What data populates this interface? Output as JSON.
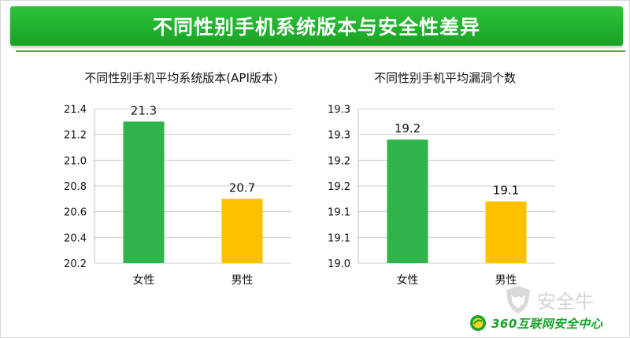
{
  "header": {
    "title": "不同性别手机系统版本与安全性差异"
  },
  "chart_data": [
    {
      "type": "bar",
      "title": "不同性别手机平均系统版本(API版本)",
      "categories": [
        "女性",
        "男性"
      ],
      "values": [
        21.3,
        20.7
      ],
      "value_labels": [
        "21.3",
        "20.7"
      ],
      "colors": [
        "#2fb34a",
        "#ffc000"
      ],
      "ylim": [
        20.2,
        21.4
      ],
      "yticks": [
        20.2,
        20.4,
        20.6,
        20.8,
        21.0,
        21.2,
        21.4
      ],
      "ytick_labels": [
        "20.2",
        "20.4",
        "20.6",
        "20.8",
        "21.0",
        "21.2",
        "21.4"
      ],
      "grid": true
    },
    {
      "type": "bar",
      "title": "不同性别手机平均漏洞个数",
      "categories": [
        "女性",
        "男性"
      ],
      "values": [
        19.24,
        19.12
      ],
      "value_labels": [
        "19.2",
        "19.1"
      ],
      "colors": [
        "#2fb34a",
        "#ffc000"
      ],
      "ylim": [
        19.0,
        19.3
      ],
      "yticks": [
        19.0,
        19.05,
        19.1,
        19.15,
        19.2,
        19.25,
        19.3
      ],
      "ytick_labels": [
        "19.0",
        "19.1",
        "19.1",
        "19.2",
        "19.2",
        "19.3",
        "19.3"
      ],
      "grid": true
    }
  ],
  "footer": {
    "logo_text": "360互联网安全中心",
    "logo_icon": "360-logo-icon"
  },
  "watermark": {
    "text": "安全牛",
    "icon": "bull-shield-icon"
  }
}
